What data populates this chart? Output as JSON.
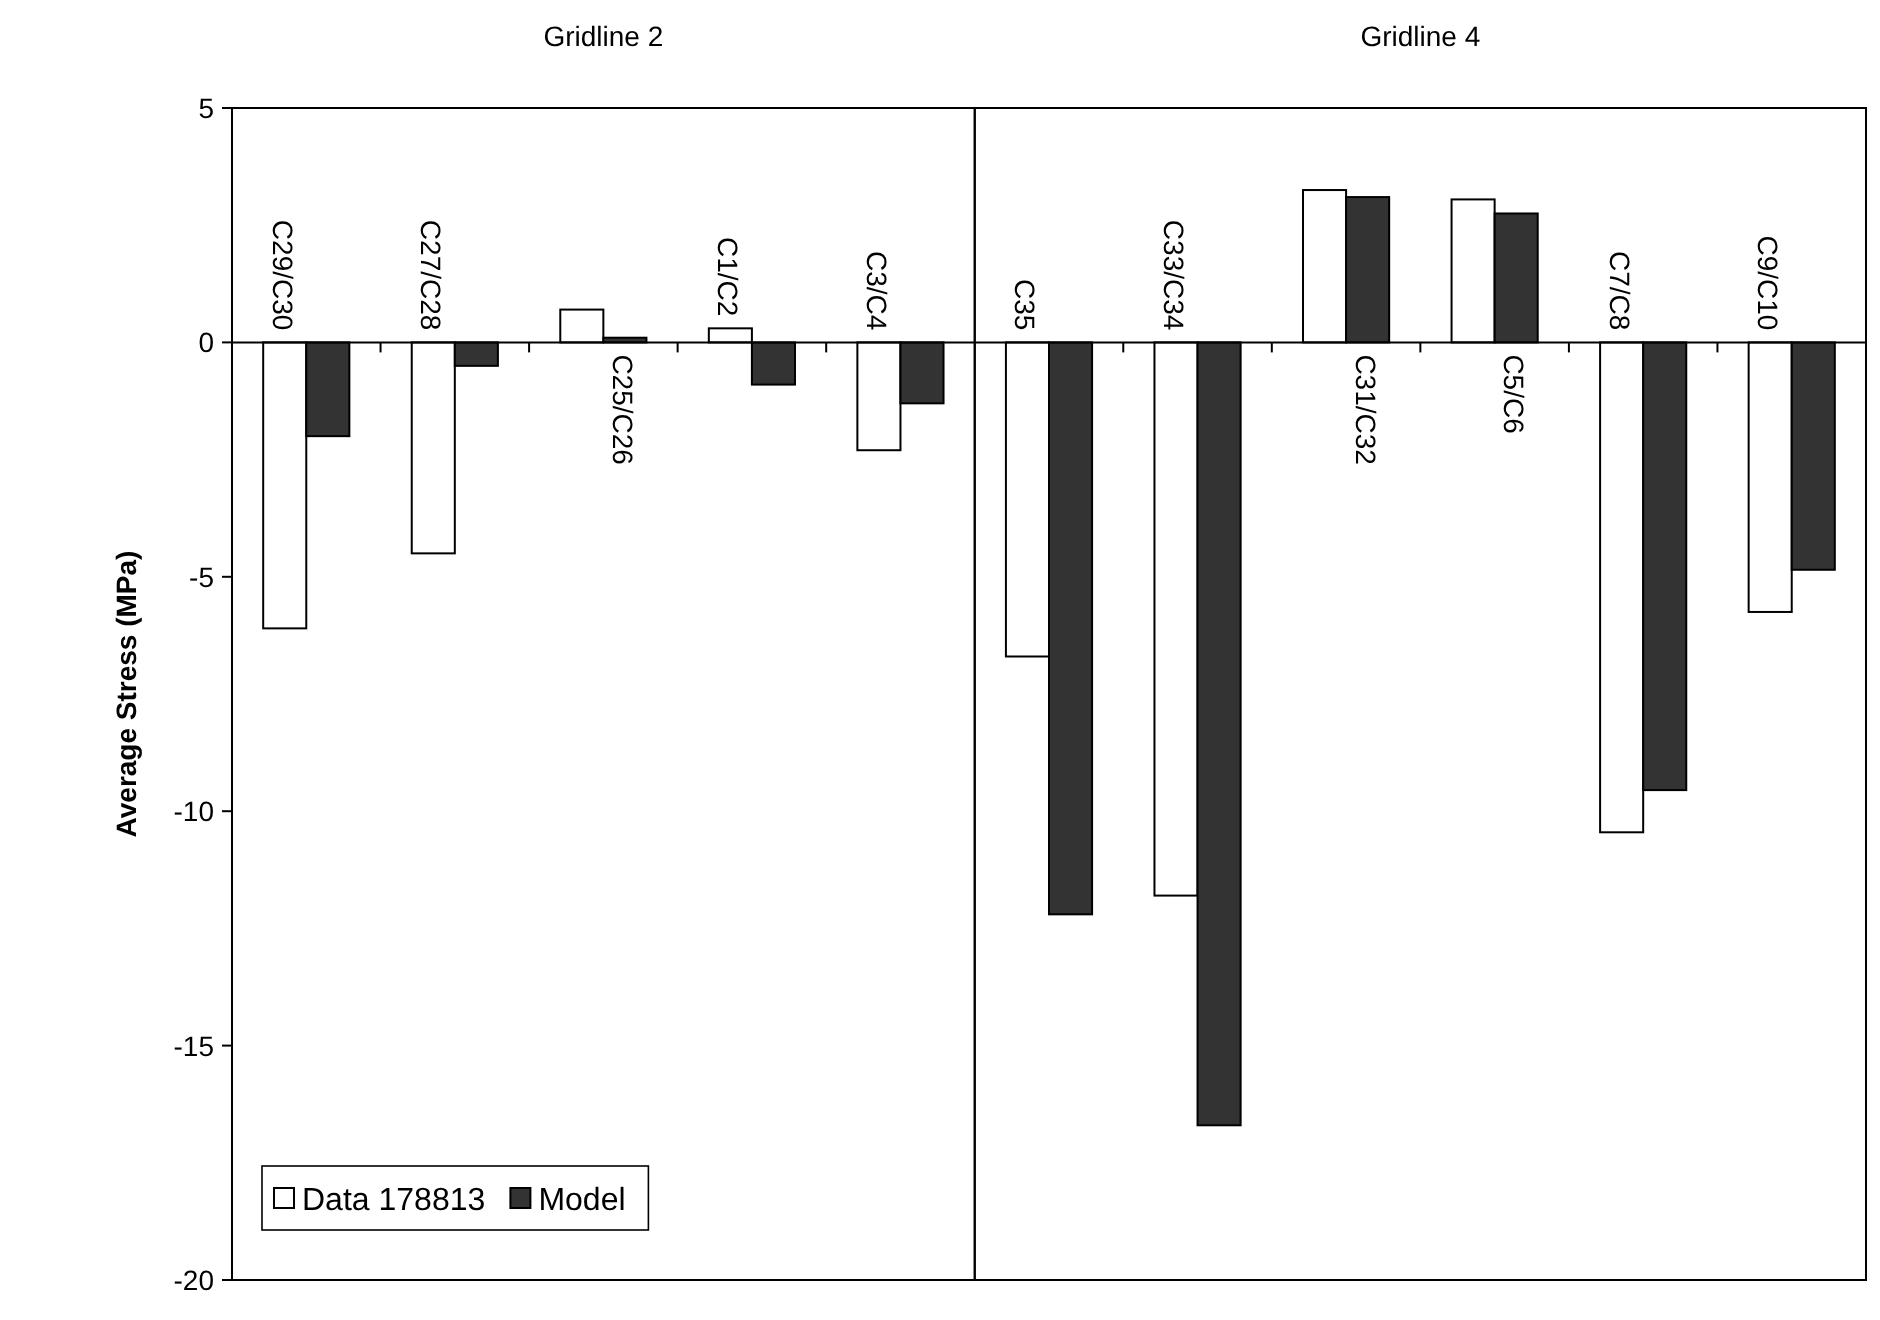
{
  "chart_data": [
    {
      "type": "bar",
      "title": "Gridline 2",
      "ylabel": "Average Stress (MPa)",
      "categories": [
        "C29/C30",
        "C27/C28",
        "C25/C26",
        "C1/C2",
        "C3/C4"
      ],
      "series": [
        {
          "name": "Data 178813",
          "color": "#ffffff",
          "values": [
            -6.1,
            -4.5,
            0.7,
            0.3,
            -2.3
          ]
        },
        {
          "name": "Model",
          "color": "#333333",
          "values": [
            -2.0,
            -0.5,
            0.1,
            -0.9,
            -1.3
          ]
        }
      ],
      "ylim": [
        -20,
        5
      ],
      "yticks": [
        -20,
        -15,
        -10,
        -5,
        0,
        5
      ],
      "legend": "bottom left"
    },
    {
      "type": "bar",
      "title": "Gridline 4",
      "categories": [
        "C35",
        "C33/C34",
        "C31/C32",
        "C5/C6",
        "C7/C8",
        "C9/C10"
      ],
      "series": [
        {
          "color": "#ffffff",
          "values": [
            -6.7,
            -11.8,
            3.25,
            3.05,
            -10.45,
            -5.75
          ]
        },
        {
          "color": "#333333",
          "values": [
            -12.2,
            -16.7,
            3.1,
            2.75,
            -9.55,
            -4.85
          ]
        }
      ],
      "ylim": [
        -20,
        5
      ],
      "yticks": [
        -20,
        -15,
        -10,
        -5,
        0,
        5
      ],
      "tick_labels": "x"
    }
  ]
}
